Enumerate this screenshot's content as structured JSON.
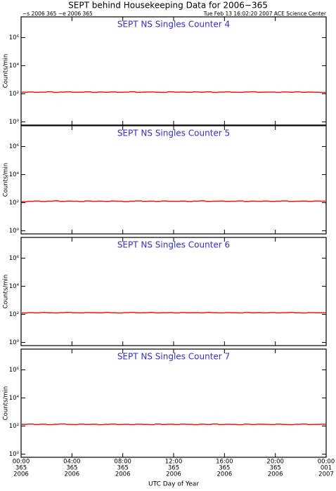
{
  "header": {
    "title": "SEPT behind Housekeeping Data for 2006−365",
    "left": "−s 2006 365  −e 2006 365",
    "right": "Tue Feb 13 16:02:20 2007 ACE Science Center"
  },
  "chart_data": [
    {
      "type": "line",
      "title": "SEPT NS Singles Counter 4",
      "y_label": "Counts/min",
      "log_y": true,
      "color": "#ff0000",
      "ylim": [
        0.6,
        30000000
      ],
      "yticks": [
        {
          "value": 1,
          "label": "10⁰"
        },
        {
          "value": 100,
          "label": "10²"
        },
        {
          "value": 10000,
          "label": "10⁴"
        },
        {
          "value": 1000000,
          "label": "10⁶"
        }
      ],
      "xlim": [
        0,
        24
      ],
      "x": [
        0,
        0.5,
        1,
        1.5,
        2,
        2.5,
        3,
        3.5,
        4,
        4.5,
        5,
        5.5,
        6,
        6.5,
        7,
        7.5,
        8,
        8.5,
        9,
        9.5,
        10,
        10.5,
        11,
        11.5,
        12,
        12.5,
        13,
        13.5,
        14,
        14.5,
        15,
        15.5,
        16,
        16.5,
        17,
        17.5,
        18,
        18.5,
        19,
        19.5,
        20,
        20.5,
        21,
        21.5,
        22,
        22.5,
        23,
        23.5
      ],
      "values": [
        130,
        135,
        128,
        132,
        140,
        126,
        133,
        137,
        129,
        131,
        138,
        127,
        134,
        130,
        136,
        129,
        132,
        141,
        128,
        133,
        135,
        130,
        127,
        139,
        132,
        134,
        129,
        136,
        131,
        138,
        126,
        133,
        137,
        130,
        128,
        135,
        140,
        129,
        132,
        134,
        127,
        136,
        131,
        138,
        130,
        133,
        129,
        125
      ]
    },
    {
      "type": "line",
      "title": "SEPT NS Singles Counter 5",
      "y_label": "Counts/min",
      "log_y": true,
      "color": "#ff0000",
      "ylim": [
        0.6,
        30000000
      ],
      "yticks": [
        {
          "value": 1,
          "label": "10⁰"
        },
        {
          "value": 100,
          "label": "10²"
        },
        {
          "value": 10000,
          "label": "10⁴"
        },
        {
          "value": 1000000,
          "label": "10⁶"
        }
      ],
      "xlim": [
        0,
        24
      ],
      "x": [
        0,
        0.5,
        1,
        1.5,
        2,
        2.5,
        3,
        3.5,
        4,
        4.5,
        5,
        5.5,
        6,
        6.5,
        7,
        7.5,
        8,
        8.5,
        9,
        9.5,
        10,
        10.5,
        11,
        11.5,
        12,
        12.5,
        13,
        13.5,
        14,
        14.5,
        15,
        15.5,
        16,
        16.5,
        17,
        17.5,
        18,
        18.5,
        19,
        19.5,
        20,
        20.5,
        21,
        21.5,
        22,
        22.5,
        23,
        23.5
      ],
      "values": [
        118,
        126,
        131,
        122,
        128,
        135,
        124,
        130,
        127,
        121,
        133,
        126,
        129,
        124,
        131,
        127,
        120,
        128,
        134,
        125,
        129,
        123,
        132,
        127,
        126,
        130,
        122,
        129,
        135,
        124,
        128,
        131,
        125,
        127,
        133,
        122,
        129,
        126,
        131,
        124,
        128,
        134,
        123,
        127,
        130,
        125,
        132,
        128
      ]
    },
    {
      "type": "line",
      "title": "SEPT NS Singles Counter 6",
      "y_label": "Counts/min",
      "log_y": true,
      "color": "#ff0000",
      "ylim": [
        0.6,
        30000000
      ],
      "yticks": [
        {
          "value": 1,
          "label": "10⁰"
        },
        {
          "value": 100,
          "label": "10²"
        },
        {
          "value": 10000,
          "label": "10⁴"
        },
        {
          "value": 1000000,
          "label": "10⁶"
        }
      ],
      "xlim": [
        0,
        24
      ],
      "x": [
        0,
        0.5,
        1,
        1.5,
        2,
        2.5,
        3,
        3.5,
        4,
        4.5,
        5,
        5.5,
        6,
        6.5,
        7,
        7.5,
        8,
        8.5,
        9,
        9.5,
        10,
        10.5,
        11,
        11.5,
        12,
        12.5,
        13,
        13.5,
        14,
        14.5,
        15,
        15.5,
        16,
        16.5,
        17,
        17.5,
        18,
        18.5,
        19,
        19.5,
        20,
        20.5,
        21,
        21.5,
        22,
        22.5,
        23,
        23.5
      ],
      "values": [
        125,
        133,
        128,
        136,
        131,
        127,
        134,
        139,
        130,
        128,
        135,
        132,
        129,
        137,
        131,
        126,
        133,
        138,
        129,
        132,
        136,
        128,
        131,
        134,
        127,
        135,
        130,
        133,
        129,
        137,
        132,
        128,
        134,
        131,
        127,
        136,
        130,
        133,
        129,
        135,
        128,
        132,
        137,
        130,
        126,
        134,
        131,
        129
      ]
    },
    {
      "type": "line",
      "title": "SEPT NS Singles Counter 7",
      "y_label": "Counts/min",
      "x_label": "UTC Day of Year",
      "log_y": true,
      "color": "#ff0000",
      "ylim": [
        0.6,
        30000000
      ],
      "yticks": [
        {
          "value": 1,
          "label": "10⁰"
        },
        {
          "value": 100,
          "label": "10²"
        },
        {
          "value": 10000,
          "label": "10⁴"
        },
        {
          "value": 1000000,
          "label": "10⁶"
        }
      ],
      "xlim": [
        0,
        24
      ],
      "xticks": [
        {
          "value": 0,
          "label": [
            "00:00",
            "365",
            "2006"
          ]
        },
        {
          "value": 4,
          "label": [
            "04:00",
            "365",
            "2006"
          ]
        },
        {
          "value": 8,
          "label": [
            "08:00",
            "365",
            "2006"
          ]
        },
        {
          "value": 12,
          "label": [
            "12:00",
            "365",
            "2006"
          ]
        },
        {
          "value": 16,
          "label": [
            "16:00",
            "365",
            "2006"
          ]
        },
        {
          "value": 20,
          "label": [
            "20:00",
            "365",
            "2006"
          ]
        },
        {
          "value": 24,
          "label": [
            "00:00",
            "001",
            "2007"
          ]
        }
      ],
      "x": [
        0,
        0.5,
        1,
        1.5,
        2,
        2.5,
        3,
        3.5,
        4,
        4.5,
        5,
        5.5,
        6,
        6.5,
        7,
        7.5,
        8,
        8.5,
        9,
        9.5,
        10,
        10.5,
        11,
        11.5,
        12,
        12.5,
        13,
        13.5,
        14,
        14.5,
        15,
        15.5,
        16,
        16.5,
        17,
        17.5,
        18,
        18.5,
        19,
        19.5,
        20,
        20.5,
        21,
        21.5,
        22,
        22.5,
        23,
        23.5
      ],
      "values": [
        132,
        138,
        129,
        135,
        127,
        133,
        140,
        131,
        128,
        136,
        130,
        134,
        126,
        132,
        137,
        129,
        133,
        128,
        135,
        131,
        127,
        138,
        130,
        134,
        129,
        136,
        132,
        127,
        135,
        130,
        139,
        128,
        133,
        131,
        126,
        137,
        129,
        134,
        132,
        128,
        136,
        130,
        127,
        133,
        138,
        129,
        131,
        134
      ]
    }
  ]
}
